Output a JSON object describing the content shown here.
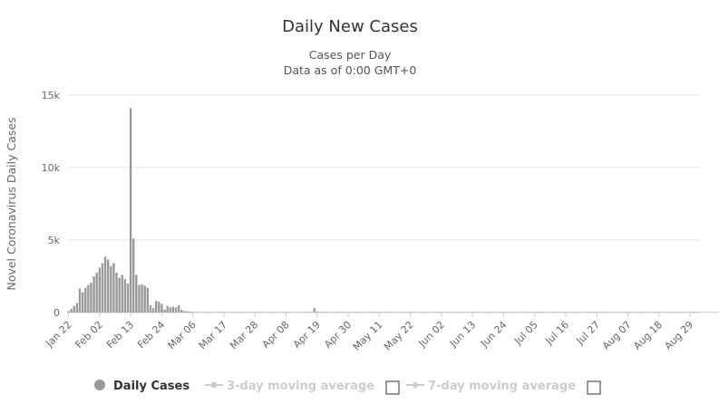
{
  "chart_data": {
    "type": "bar",
    "title": "Daily New Cases",
    "subtitle_lines": [
      "Cases per Day",
      "Data as of 0:00 GMT+0"
    ],
    "ylabel": "Novel Coronavirus Daily Cases",
    "ylim": [
      0,
      15000
    ],
    "yticks": [
      {
        "value": 0,
        "label": "0"
      },
      {
        "value": 5000,
        "label": "5k"
      },
      {
        "value": 10000,
        "label": "10k"
      },
      {
        "value": 15000,
        "label": "15k"
      }
    ],
    "x_start": "Jan 22",
    "x_count": 224,
    "xtick_labels": [
      "Jan 22",
      "Feb 02",
      "Feb 13",
      "Feb 24",
      "Mar 06",
      "Mar 17",
      "Mar 28",
      "Apr 08",
      "Apr 19",
      "Apr 30",
      "May 11",
      "May 22",
      "Jun 02",
      "Jun 13",
      "Jun 24",
      "Jul 05",
      "Jul 16",
      "Jul 27",
      "Aug 07",
      "Aug 18",
      "Aug 29"
    ],
    "grid": true,
    "series": [
      {
        "name": "Daily Cases",
        "color": "#999999",
        "values": [
          100,
          250,
          450,
          650,
          1650,
          1400,
          1700,
          1900,
          2050,
          2500,
          2750,
          3100,
          3400,
          3850,
          3650,
          3200,
          3400,
          2750,
          2400,
          2600,
          2300,
          2000,
          14100,
          5100,
          2600,
          1900,
          1950,
          1850,
          1700,
          500,
          300,
          800,
          750,
          600,
          200,
          450,
          350,
          400,
          350,
          500,
          200,
          100,
          80,
          60,
          50,
          40,
          30,
          30,
          20,
          30,
          20,
          20,
          15,
          10,
          10,
          10,
          10,
          10,
          10,
          10,
          10,
          10,
          10,
          10,
          10,
          10,
          10,
          10,
          10,
          10,
          10,
          10,
          10,
          10,
          10,
          10,
          10,
          10,
          10,
          10,
          10,
          10,
          10,
          15,
          15,
          10,
          10,
          300,
          50,
          30,
          20,
          20,
          15,
          10,
          10,
          10,
          5,
          5,
          5,
          5,
          5,
          5,
          5,
          5,
          5,
          5,
          5,
          5,
          5,
          5,
          5,
          5,
          5,
          5,
          5,
          5,
          5,
          5,
          5,
          5,
          5,
          5,
          5,
          5,
          5,
          5,
          5,
          5,
          5,
          5,
          5,
          5,
          5,
          5,
          5,
          5,
          5,
          5,
          5,
          5,
          5,
          5,
          5,
          5,
          5,
          5,
          5,
          5,
          5,
          5,
          5,
          5,
          5,
          5,
          5,
          5,
          5,
          5,
          5,
          5,
          5,
          5,
          5,
          5,
          5,
          5,
          5,
          5,
          5,
          5,
          5,
          5,
          5,
          5,
          5,
          5,
          5,
          5,
          5,
          5,
          5,
          5,
          5,
          5,
          5,
          5,
          5,
          5,
          5,
          5,
          5,
          5,
          5,
          5,
          5,
          5,
          5,
          5,
          5,
          5,
          5,
          5,
          5,
          5,
          5,
          5,
          5,
          5,
          5,
          5,
          5,
          5,
          5,
          5,
          5,
          5,
          5,
          5,
          5,
          5,
          5,
          5,
          5,
          5,
          5,
          5,
          5,
          5,
          5,
          5,
          5,
          5,
          5,
          5
        ]
      }
    ],
    "legend": [
      {
        "label": "Daily Cases",
        "color": "#999999",
        "active": true
      },
      {
        "label": "3-day moving average",
        "color": "#cccccc",
        "active": false
      },
      {
        "label": "7-day moving average",
        "color": "#cccccc",
        "active": false
      }
    ]
  }
}
